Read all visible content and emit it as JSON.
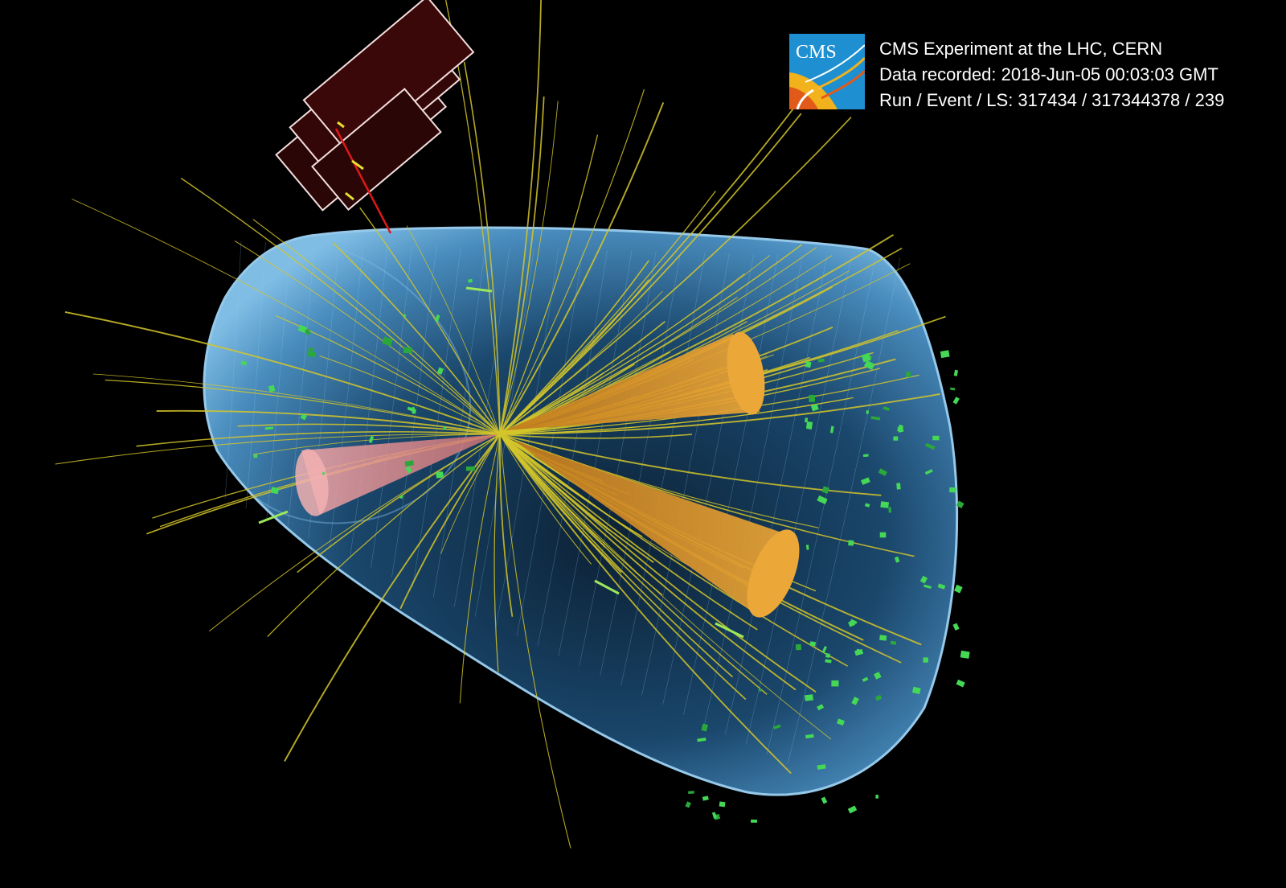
{
  "info": {
    "experiment": "CMS Experiment at the LHC, CERN",
    "recorded": "Data recorded: 2018-Jun-05 00:03:03 GMT",
    "run_event": "Run / Event / LS: 317434 / 317344378 / 239"
  },
  "logo": {
    "text": "CMS"
  },
  "colors": {
    "background": "#000000",
    "detector_volume": "#6fb8ea",
    "tracks": "#d4c62a",
    "jet_cones": "#e9a334",
    "photon_cone": "#e79a9c",
    "calorimeter_hits": "#38d04a",
    "muon_chambers": "#3a0808",
    "muon_track": "#e01818",
    "text": "#ffffff"
  },
  "icons": {
    "logo": "cms-logo-icon"
  }
}
